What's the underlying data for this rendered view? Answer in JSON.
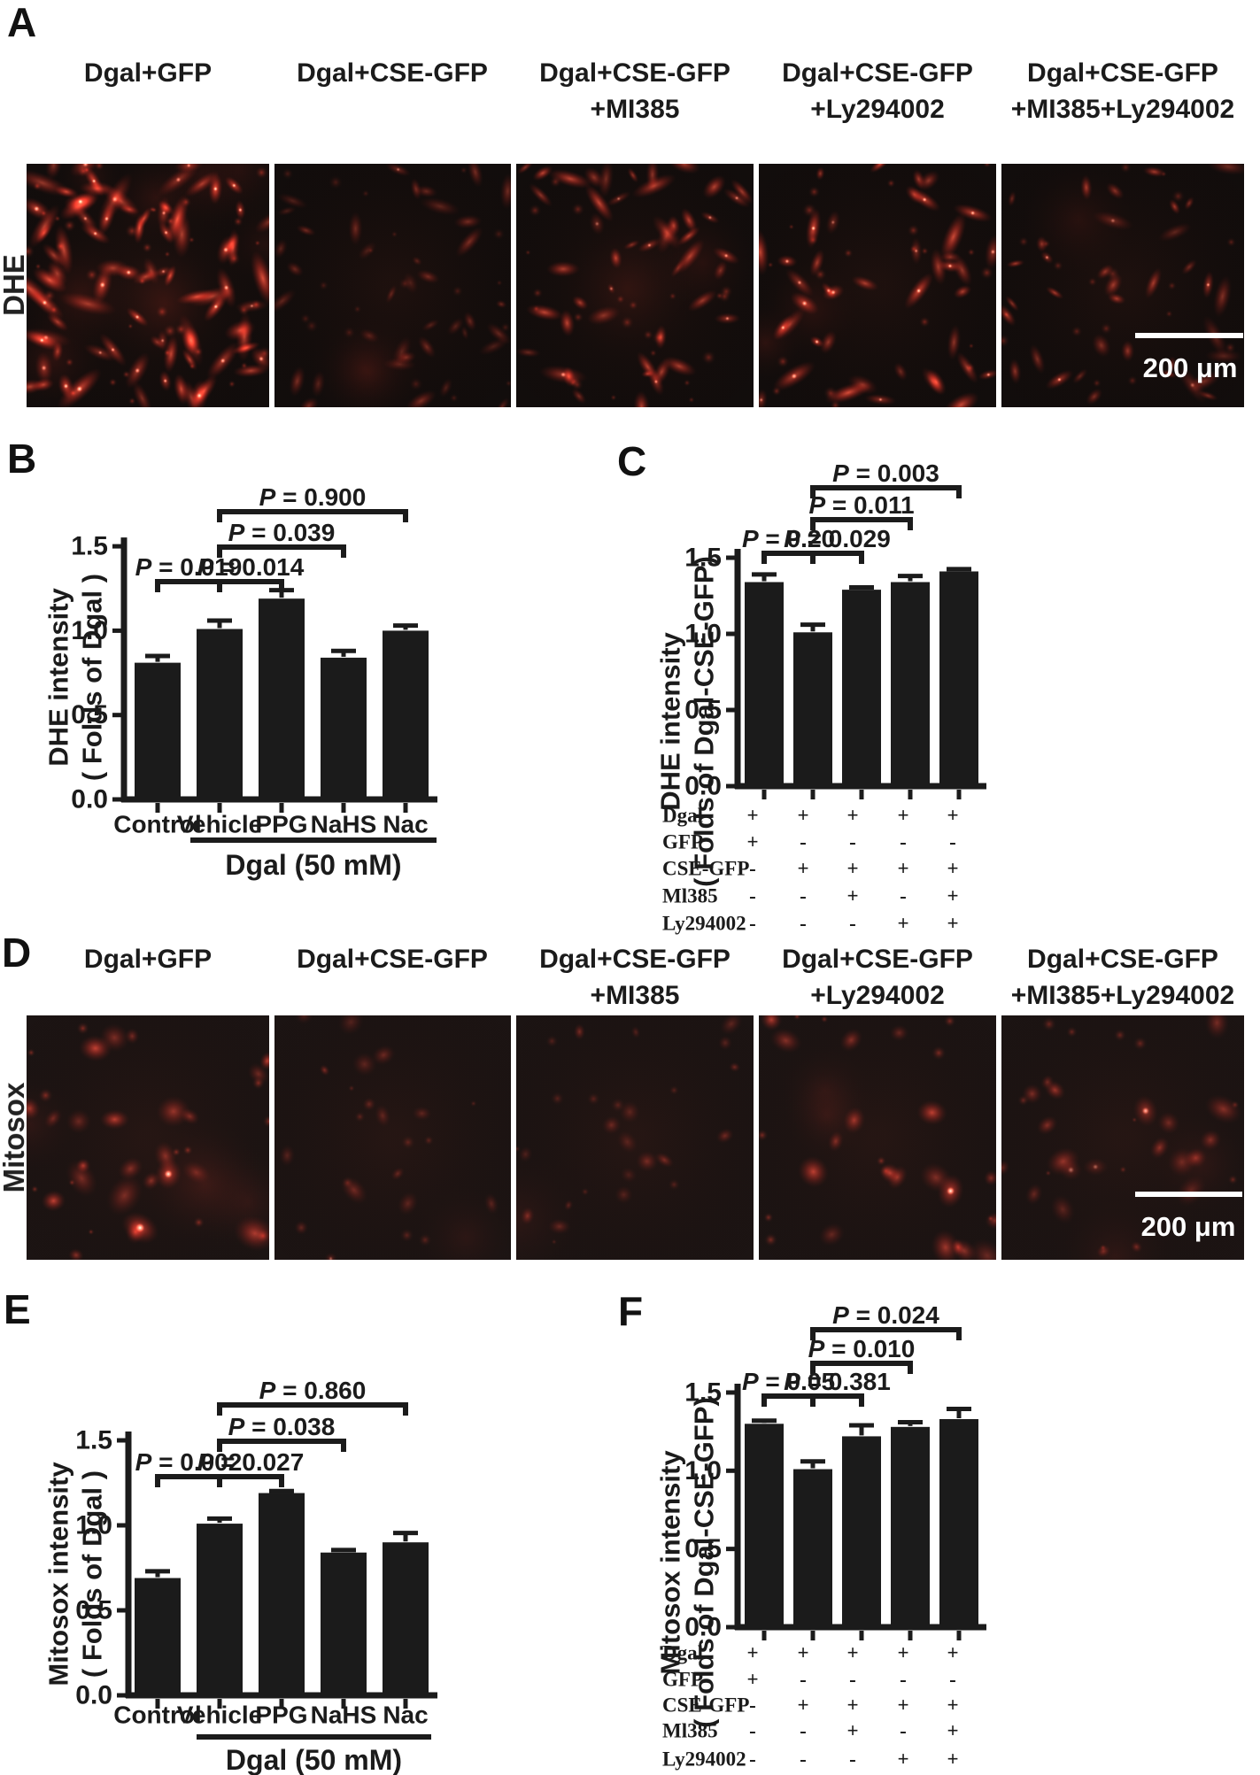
{
  "colors": {
    "bar": "#1b1b1b",
    "cell_red": "#cf2318",
    "micro_background": "#150f0e",
    "page_background": "#ffffff"
  },
  "panel_letters": {
    "a": "A",
    "b": "B",
    "c": "C",
    "d": "D",
    "e": "E",
    "f": "F"
  },
  "conditions": [
    {
      "line1": "Dgal+GFP",
      "line2": ""
    },
    {
      "line1": "Dgal+CSE-GFP",
      "line2": ""
    },
    {
      "line1": "Dgal+CSE-GFP",
      "line2": "+MI385"
    },
    {
      "line1": "Dgal+CSE-GFP",
      "line2": "+Ly294002"
    },
    {
      "line1": "Dgal+CSE-GFP",
      "line2": "+MI385+Ly294002"
    }
  ],
  "panel_a": {
    "row_label": "DHE",
    "scale_bar_label": "200 μm",
    "images": [
      {
        "seed": 1,
        "cells": 85,
        "brightness": 1.0,
        "hot": 0.45,
        "rmin": 5,
        "rmax": 11,
        "elong": [
          1.6,
          3.2
        ],
        "patches": 8
      },
      {
        "seed": 2,
        "cells": 38,
        "brightness": 0.5,
        "hot": 0.05,
        "rmin": 4,
        "rmax": 9,
        "elong": [
          1.4,
          2.8
        ],
        "patches": 2
      },
      {
        "seed": 3,
        "cells": 48,
        "brightness": 0.8,
        "hot": 0.22,
        "rmin": 4,
        "rmax": 10,
        "elong": [
          1.5,
          3.0
        ],
        "patches": 2
      },
      {
        "seed": 4,
        "cells": 42,
        "brightness": 0.9,
        "hot": 0.3,
        "rmin": 5,
        "rmax": 11,
        "elong": [
          1.5,
          3.0
        ],
        "patches": 2
      },
      {
        "seed": 5,
        "cells": 36,
        "brightness": 0.7,
        "hot": 0.18,
        "rmin": 4,
        "rmax": 10,
        "elong": [
          1.4,
          2.8
        ],
        "patches": 1
      }
    ]
  },
  "panel_d": {
    "row_label": "Mitosox",
    "scale_bar_label": "200 μm",
    "images": [
      {
        "seed": 11,
        "cells": 24,
        "brightness": 0.95,
        "hot": 0.12,
        "rmin": 7,
        "rmax": 20,
        "elong": [
          1.0,
          1.5
        ],
        "patches": 3
      },
      {
        "seed": 12,
        "cells": 15,
        "brightness": 0.6,
        "hot": 0.05,
        "rmin": 5,
        "rmax": 14,
        "elong": [
          1.0,
          1.6
        ],
        "patches": 1
      },
      {
        "seed": 13,
        "cells": 17,
        "brightness": 0.55,
        "hot": 0.08,
        "rmin": 4,
        "rmax": 12,
        "elong": [
          1.0,
          1.7
        ],
        "patches": 1
      },
      {
        "seed": 14,
        "cells": 19,
        "brightness": 0.9,
        "hot": 0.1,
        "rmin": 6,
        "rmax": 18,
        "elong": [
          1.0,
          1.5
        ],
        "patches": 2
      },
      {
        "seed": 15,
        "cells": 21,
        "brightness": 0.75,
        "hot": 0.15,
        "rmin": 5,
        "rmax": 16,
        "elong": [
          1.0,
          1.5
        ],
        "patches": 2
      }
    ]
  },
  "chart_data": [
    {
      "id": "B",
      "type": "bar",
      "ylabel_line1": "DHE intensity",
      "ylabel_line2": "( Folds of Dgal )",
      "categories": [
        "Control",
        "Vehicle",
        "PPG",
        "NaHS",
        "Nac"
      ],
      "values": [
        0.81,
        1.01,
        1.19,
        0.84,
        1.0
      ],
      "errors": [
        0.04,
        0.05,
        0.05,
        0.04,
        0.03
      ],
      "yticks": [
        0.0,
        0.5,
        1.0,
        1.5
      ],
      "ylim": [
        0,
        1.5
      ],
      "grid": false,
      "group_label": "Dgal (50 mM)",
      "comparisons": [
        {
          "label": "P = 0.019",
          "from": 0,
          "to": 1,
          "level": 0
        },
        {
          "label": "P = 0.014",
          "from": 1,
          "to": 2,
          "level": 0
        },
        {
          "label": "P = 0.039",
          "from": 1,
          "to": 3,
          "level": 1
        },
        {
          "label": "P = 0.900",
          "from": 1,
          "to": 4,
          "level": 2
        }
      ]
    },
    {
      "id": "C",
      "type": "bar",
      "ylabel_line1": "DHE intensity",
      "ylabel_line2": "( Folds of Dgal-CSE-GFP)",
      "values": [
        1.34,
        1.01,
        1.29,
        1.34,
        1.41
      ],
      "errors": [
        0.05,
        0.05,
        0.015,
        0.04,
        0.015
      ],
      "yticks": [
        0.0,
        0.5,
        1.0,
        1.5
      ],
      "ylim": [
        0,
        1.5
      ],
      "grid": false,
      "comparisons": [
        {
          "label": "P = 0.20",
          "from": 0,
          "to": 1,
          "level": 0
        },
        {
          "label": "P = 0.029",
          "from": 1,
          "to": 2,
          "level": 0
        },
        {
          "label": "P = 0.011",
          "from": 1,
          "to": 3,
          "level": 1
        },
        {
          "label": "P = 0.003",
          "from": 1,
          "to": 4,
          "level": 2
        }
      ],
      "matrix_rows": [
        {
          "label": "Dgal",
          "values": [
            "+",
            "+",
            "+",
            "+",
            "+"
          ]
        },
        {
          "label": "GFP",
          "values": [
            "+",
            "-",
            "-",
            "-",
            "-"
          ]
        },
        {
          "label": "CSE-GFP",
          "values": [
            "-",
            "+",
            "+",
            "+",
            "+"
          ]
        },
        {
          "label": "Ml385",
          "values": [
            "-",
            "-",
            "+",
            "-",
            "+"
          ]
        },
        {
          "label": "Ly294002",
          "values": [
            "-",
            "-",
            "-",
            "+",
            "+"
          ]
        }
      ]
    },
    {
      "id": "E",
      "type": "bar",
      "ylabel_line1": "Mitosox intensity",
      "ylabel_line2": "( Folds of Dgal )",
      "categories": [
        "Control",
        "Vehicle",
        "PPG",
        "NaHS",
        "Nac"
      ],
      "values": [
        0.69,
        1.01,
        1.19,
        0.84,
        0.9
      ],
      "errors": [
        0.04,
        0.03,
        0.012,
        0.015,
        0.055
      ],
      "yticks": [
        0.0,
        0.5,
        1.0,
        1.5
      ],
      "ylim": [
        0,
        1.5
      ],
      "grid": false,
      "group_label": "Dgal (50 mM)",
      "comparisons": [
        {
          "label": "P = 0.002",
          "from": 0,
          "to": 1,
          "level": 0
        },
        {
          "label": "P = 0.027",
          "from": 1,
          "to": 2,
          "level": 0
        },
        {
          "label": "P = 0.038",
          "from": 1,
          "to": 3,
          "level": 1
        },
        {
          "label": "P = 0.860",
          "from": 1,
          "to": 4,
          "level": 2
        }
      ]
    },
    {
      "id": "F",
      "type": "bar",
      "ylabel_line1": "Mitosox intensity",
      "ylabel_line2": "( Folds of Dgal-CSE-GFP)",
      "values": [
        1.3,
        1.01,
        1.22,
        1.28,
        1.33
      ],
      "errors": [
        0.02,
        0.05,
        0.07,
        0.03,
        0.065
      ],
      "yticks": [
        0.0,
        0.5,
        1.0,
        1.5
      ],
      "ylim": [
        0,
        1.5
      ],
      "grid": false,
      "comparisons": [
        {
          "label": "P = 0.05",
          "from": 0,
          "to": 1,
          "level": 0
        },
        {
          "label": "P = 0.381",
          "from": 1,
          "to": 2,
          "level": 0
        },
        {
          "label": "P = 0.010",
          "from": 1,
          "to": 3,
          "level": 1
        },
        {
          "label": "P = 0.024",
          "from": 1,
          "to": 4,
          "level": 2
        }
      ],
      "matrix_rows": [
        {
          "label": "Dgal",
          "values": [
            "+",
            "+",
            "+",
            "+",
            "+"
          ]
        },
        {
          "label": "GFP",
          "values": [
            "+",
            "-",
            "-",
            "-",
            "-"
          ]
        },
        {
          "label": "CSE-GFP",
          "values": [
            "-",
            "+",
            "+",
            "+",
            "+"
          ]
        },
        {
          "label": "Ml385",
          "values": [
            "-",
            "-",
            "+",
            "-",
            "+"
          ]
        },
        {
          "label": "Ly294002",
          "values": [
            "-",
            "-",
            "-",
            "+",
            "+"
          ]
        }
      ]
    }
  ]
}
